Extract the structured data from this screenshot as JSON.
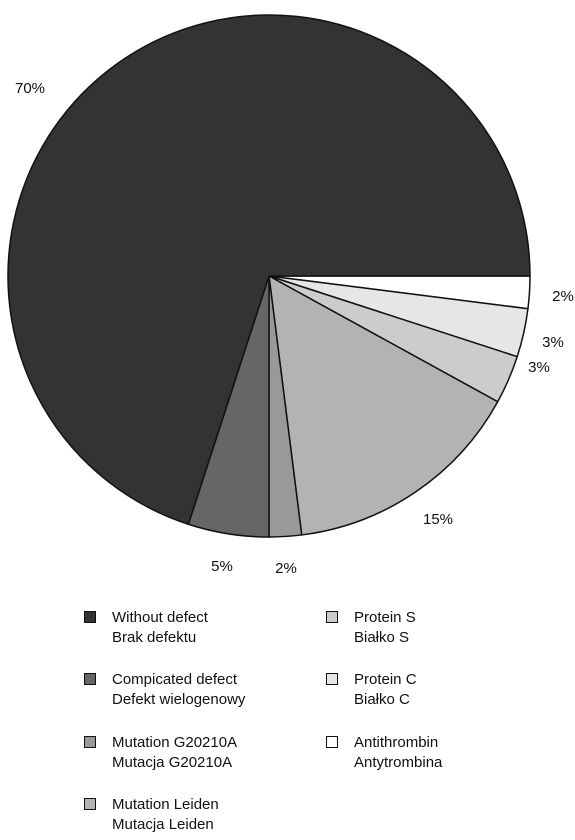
{
  "chart_data": {
    "type": "pie",
    "slices": [
      {
        "label_en": "Antithrombin",
        "label_pl": "Antytrombina",
        "value": 2,
        "label": "2%",
        "color": "#ffffff"
      },
      {
        "label_en": "Protein C",
        "label_pl": "Białko C",
        "value": 3,
        "label": "3%",
        "color": "#e6e6e6"
      },
      {
        "label_en": "Protein S",
        "label_pl": "Białko S",
        "value": 3,
        "label": "3%",
        "color": "#cccccc"
      },
      {
        "label_en": "Mutation Leiden",
        "label_pl": "Mutacja Leiden",
        "value": 15,
        "label": "15%",
        "color": "#b3b3b3"
      },
      {
        "label_en": "Mutation G20210A",
        "label_pl": "Mutacja G20210A",
        "value": 2,
        "label": "2%",
        "color": "#999999"
      },
      {
        "label_en": "Compicated defect",
        "label_pl": "Defekt wielogenowy",
        "value": 5,
        "label": "5%",
        "color": "#666666"
      },
      {
        "label_en": "Without defect",
        "label_pl": "Brak defektu",
        "value": 70,
        "label": "70%",
        "color": "#333333"
      }
    ],
    "legend_placement": "bottom"
  },
  "legend": [
    {
      "en": "Without defect",
      "pl": "Brak defektu",
      "color": "#333333"
    },
    {
      "en": "Compicated defect",
      "pl": "Defekt wielogenowy",
      "color": "#666666"
    },
    {
      "en": "Mutation G20210A",
      "pl": "Mutacja G20210A",
      "color": "#999999"
    },
    {
      "en": "Mutation Leiden",
      "pl": "Mutacja Leiden",
      "color": "#b3b3b3"
    },
    {
      "en": "Protein S",
      "pl": "Białko S",
      "color": "#cccccc"
    },
    {
      "en": "Protein C",
      "pl": "Białko C",
      "color": "#e6e6e6"
    },
    {
      "en": "Antithrombin",
      "pl": "Antytrombina",
      "color": "#ffffff"
    }
  ]
}
